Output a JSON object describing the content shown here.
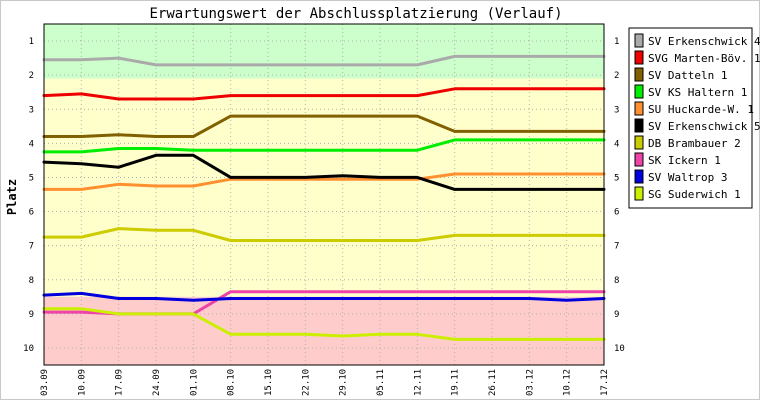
{
  "chart_data": {
    "type": "line",
    "title": "Erwartungswert der Abschlussplatzierung (Verlauf)",
    "ylabel": "Platz",
    "xlabel": "",
    "ylim": [
      0.5,
      10.5
    ],
    "y_ticks": [
      1,
      2,
      3,
      4,
      5,
      6,
      7,
      8,
      9,
      10
    ],
    "x": [
      "03.09",
      "10.09",
      "17.09",
      "24.09",
      "01.10",
      "08.10",
      "15.10",
      "22.10",
      "29.10",
      "05.11",
      "12.11",
      "19.11",
      "26.11",
      "03.12",
      "10.12",
      "17.12"
    ],
    "zones": [
      {
        "from": 0.5,
        "to": 2.1,
        "color": "#ccffcc"
      },
      {
        "from": 2.1,
        "to": 8.5,
        "color": "#ffffcc"
      },
      {
        "from": 8.5,
        "to": 10.5,
        "color": "#ffcccc"
      }
    ],
    "grid": true,
    "legend_position": "right",
    "series": [
      {
        "name": "SV Erkenschwick 4",
        "color": "#aaaaaa",
        "values": [
          1.55,
          1.55,
          1.5,
          1.7,
          1.7,
          1.7,
          1.7,
          1.7,
          1.7,
          1.7,
          1.7,
          1.45,
          1.45,
          1.45,
          1.45,
          1.45
        ]
      },
      {
        "name": "SVG Marten-Böv. 1",
        "color": "#ee0000",
        "values": [
          2.6,
          2.55,
          2.7,
          2.7,
          2.7,
          2.6,
          2.6,
          2.6,
          2.6,
          2.6,
          2.6,
          2.4,
          2.4,
          2.4,
          2.4,
          2.4
        ]
      },
      {
        "name": "SV Datteln 1",
        "color": "#806000",
        "values": [
          3.8,
          3.8,
          3.75,
          3.8,
          3.8,
          3.2,
          3.2,
          3.2,
          3.2,
          3.2,
          3.2,
          3.65,
          3.65,
          3.65,
          3.65,
          3.65
        ]
      },
      {
        "name": "SV KS Haltern 1",
        "color": "#00ee00",
        "values": [
          4.25,
          4.25,
          4.15,
          4.15,
          4.2,
          4.2,
          4.2,
          4.2,
          4.2,
          4.2,
          4.2,
          3.9,
          3.9,
          3.9,
          3.9,
          3.9
        ]
      },
      {
        "name": "SU Huckarde-W. 1",
        "color": "#ff9030",
        "values": [
          5.35,
          5.35,
          5.2,
          5.25,
          5.25,
          5.05,
          5.05,
          5.05,
          5.05,
          5.05,
          5.05,
          4.9,
          4.9,
          4.9,
          4.9,
          4.9
        ]
      },
      {
        "name": "SV Erkenschwick 5",
        "color": "#000000",
        "values": [
          4.55,
          4.6,
          4.7,
          4.35,
          4.35,
          5.0,
          5.0,
          5.0,
          4.95,
          5.0,
          5.0,
          5.35,
          5.35,
          5.35,
          5.35,
          5.35
        ]
      },
      {
        "name": "DB Brambauer 2",
        "color": "#cccc00",
        "values": [
          6.75,
          6.75,
          6.5,
          6.55,
          6.55,
          6.85,
          6.85,
          6.85,
          6.85,
          6.85,
          6.85,
          6.7,
          6.7,
          6.7,
          6.7,
          6.7
        ]
      },
      {
        "name": "SK Ickern 1",
        "color": "#ee44aa",
        "values": [
          8.95,
          8.95,
          9.0,
          9.0,
          9.0,
          8.35,
          8.35,
          8.35,
          8.35,
          8.35,
          8.35,
          8.35,
          8.35,
          8.35,
          8.35,
          8.35
        ]
      },
      {
        "name": "SV Waltrop 3",
        "color": "#0000dd",
        "values": [
          8.45,
          8.4,
          8.55,
          8.55,
          8.6,
          8.55,
          8.55,
          8.55,
          8.55,
          8.55,
          8.55,
          8.55,
          8.55,
          8.55,
          8.6,
          8.55
        ]
      },
      {
        "name": "SG Suderwich 1",
        "color": "#ccee00",
        "values": [
          8.85,
          8.85,
          9.0,
          9.0,
          9.0,
          9.6,
          9.6,
          9.6,
          9.65,
          9.6,
          9.6,
          9.75,
          9.75,
          9.75,
          9.75,
          9.75
        ]
      }
    ]
  }
}
